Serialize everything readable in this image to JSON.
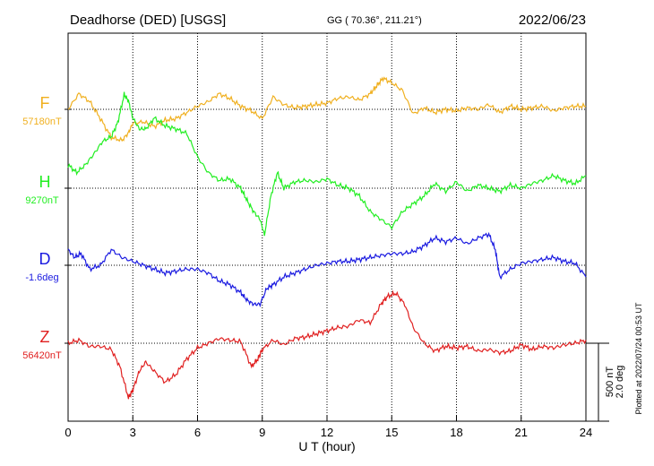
{
  "header": {
    "station": "Deadhorse (DED)  [USGS]",
    "coords": "GG ( 70.36°, 211.21°)",
    "date": "2022/06/23"
  },
  "plotted_note": "Plotted at 2022/07/24 00:53 UT",
  "scale_bar": {
    "nt_label": "500 nT",
    "deg_label": "2.0 deg"
  },
  "chart_data": {
    "type": "line",
    "xlabel": "U T (hour)",
    "xlim": [
      0,
      24
    ],
    "xticks": [
      "0",
      "3",
      "6",
      "9",
      "12",
      "15",
      "18",
      "21",
      "24"
    ],
    "grid": true,
    "series": [
      {
        "name": "F",
        "baseline_label": "57180nT",
        "color": "#f0b020",
        "unit": "nT",
        "x": [
          0,
          0.5,
          1,
          1.5,
          2,
          2.5,
          2.8,
          3,
          3.5,
          4,
          4.5,
          5,
          5.5,
          6,
          6.5,
          7,
          7.5,
          8,
          8.5,
          9,
          9.5,
          10,
          10.5,
          11,
          11.5,
          12,
          12.5,
          13,
          13.5,
          14,
          14.3,
          14.6,
          15,
          15.5,
          16,
          16.5,
          17,
          17.5,
          18,
          18.5,
          19,
          19.5,
          20,
          20.5,
          21,
          21.5,
          22,
          22.5,
          23,
          23.5,
          24
        ],
        "y": [
          0,
          100,
          50,
          -60,
          -180,
          -200,
          -150,
          -90,
          -80,
          -110,
          -70,
          -60,
          -20,
          20,
          50,
          100,
          70,
          20,
          -10,
          -60,
          80,
          30,
          10,
          20,
          30,
          40,
          70,
          80,
          60,
          100,
          150,
          200,
          170,
          120,
          -30,
          10,
          -20,
          0,
          -10,
          10,
          0,
          30,
          -20,
          20,
          0,
          10,
          20,
          -10,
          10,
          20,
          20
        ]
      },
      {
        "name": "H",
        "baseline_label": "9270nT",
        "color": "#22ee22",
        "unit": "nT",
        "x": [
          0,
          0.4,
          0.8,
          1.2,
          1.6,
          2,
          2.3,
          2.6,
          2.8,
          3,
          3.3,
          3.6,
          4,
          4.5,
          5,
          5.5,
          6,
          6.5,
          7,
          7.5,
          8,
          8.3,
          8.6,
          8.9,
          9.1,
          9.4,
          9.7,
          10,
          10.5,
          11,
          11.5,
          12,
          12.5,
          13,
          13.5,
          14,
          14.5,
          15,
          15.5,
          16,
          16.5,
          17,
          17.5,
          18,
          18.5,
          19,
          19.5,
          20,
          20.5,
          21,
          21.5,
          22,
          22.5,
          23,
          23.5,
          24
        ],
        "y": [
          150,
          100,
          150,
          220,
          300,
          330,
          420,
          600,
          560,
          450,
          380,
          380,
          450,
          400,
          380,
          350,
          200,
          100,
          50,
          60,
          0,
          -80,
          -150,
          -200,
          -300,
          -50,
          100,
          0,
          40,
          50,
          40,
          60,
          20,
          0,
          -50,
          -150,
          -200,
          -250,
          -150,
          -100,
          -50,
          30,
          -20,
          40,
          -20,
          20,
          0,
          -20,
          20,
          0,
          30,
          50,
          80,
          50,
          30,
          80
        ]
      },
      {
        "name": "D",
        "baseline_label": "-1.6deg",
        "color": "#1a1ae0",
        "unit": "deg",
        "x": [
          0,
          0.3,
          0.6,
          1,
          1.5,
          2,
          2.5,
          3,
          3.5,
          4,
          4.5,
          5,
          5.5,
          6,
          6.5,
          7,
          7.5,
          8,
          8.3,
          8.6,
          8.9,
          9.2,
          9.5,
          10,
          10.5,
          11,
          11.5,
          12,
          12.5,
          13,
          13.5,
          14,
          14.5,
          15,
          15.5,
          16,
          16.5,
          17,
          17.5,
          18,
          18.5,
          19,
          19.5,
          19.8,
          20,
          20.5,
          21,
          21.5,
          22,
          22.5,
          23,
          23.5,
          24
        ],
        "y": [
          0.4,
          0.2,
          0.3,
          -0.1,
          0,
          0.4,
          0.2,
          0.1,
          0,
          -0.1,
          -0.2,
          -0.15,
          -0.1,
          -0.1,
          -0.2,
          -0.4,
          -0.5,
          -0.7,
          -0.9,
          -1.0,
          -1.0,
          -0.6,
          -0.5,
          -0.3,
          -0.2,
          -0.1,
          0,
          0.05,
          0.1,
          0.1,
          0.15,
          0.2,
          0.25,
          0.3,
          0.3,
          0.35,
          0.5,
          0.7,
          0.6,
          0.7,
          0.55,
          0.7,
          0.8,
          0.4,
          -0.3,
          -0.1,
          0.05,
          0.1,
          0.15,
          0.2,
          0.1,
          0.05,
          -0.3
        ]
      },
      {
        "name": "Z",
        "baseline_label": "56420nT",
        "color": "#e02020",
        "unit": "nT",
        "x": [
          0,
          0.5,
          1,
          1.5,
          2,
          2.4,
          2.8,
          3,
          3.3,
          3.6,
          4,
          4.5,
          5,
          5.5,
          6,
          6.5,
          7,
          7.5,
          8,
          8.5,
          8.8,
          9,
          9.5,
          10,
          10.5,
          11,
          11.5,
          12,
          12.5,
          13,
          13.5,
          14,
          14.5,
          14.8,
          15.2,
          15.6,
          16,
          16.5,
          17,
          17.5,
          18,
          18.5,
          19,
          19.5,
          20,
          20.5,
          21,
          21.5,
          22,
          22.5,
          23,
          23.5,
          24
        ],
        "y": [
          0,
          20,
          -20,
          -20,
          -40,
          -150,
          -350,
          -300,
          -180,
          -120,
          -180,
          -250,
          -200,
          -100,
          -30,
          0,
          30,
          20,
          10,
          -150,
          -100,
          -40,
          20,
          -10,
          30,
          40,
          60,
          80,
          100,
          110,
          150,
          130,
          250,
          300,
          320,
          250,
          100,
          0,
          -50,
          -20,
          -30,
          -20,
          -50,
          -40,
          -60,
          -50,
          -10,
          -40,
          -20,
          -30,
          -10,
          0,
          20
        ]
      }
    ]
  }
}
